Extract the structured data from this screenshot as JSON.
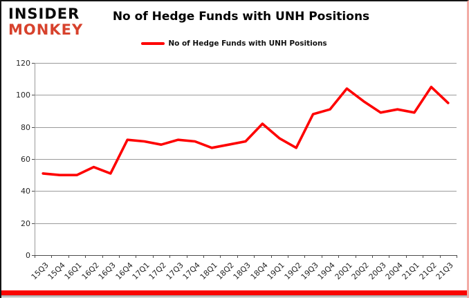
{
  "logo": {
    "line1": "INSIDER",
    "line2": "MONKEY"
  },
  "header": {
    "title": "No of Hedge Funds with UNH Positions"
  },
  "legend": {
    "label": "No of Hedge Funds with UNH Positions"
  },
  "colors": {
    "line": "#fe0000",
    "logo_red": "#d7422d",
    "bottom_band_red": "#f90500",
    "gridline": "#9a9a9a",
    "axis": "#4c4c4c",
    "tick_text": "#262626"
  },
  "chart_data": {
    "type": "line",
    "title": "No of Hedge Funds with UNH Positions",
    "series_name": "No of Hedge Funds with UNH Positions",
    "categories": [
      "15Q3",
      "15Q4",
      "16Q1",
      "16Q2",
      "16Q3",
      "16Q4",
      "17Q1",
      "17Q2",
      "17Q3",
      "17Q4",
      "18Q1",
      "18Q2",
      "18Q3",
      "18Q4",
      "19Q1",
      "19Q2",
      "19Q3",
      "19Q4",
      "20Q1",
      "20Q2",
      "20Q3",
      "20Q4",
      "21Q1",
      "21Q2",
      "21Q3"
    ],
    "values": [
      51,
      50,
      50,
      55,
      51,
      72,
      71,
      69,
      72,
      71,
      67,
      69,
      71,
      82,
      73,
      67,
      88,
      91,
      104,
      96,
      89,
      91,
      89,
      105,
      95
    ],
    "ylim": [
      0,
      120
    ],
    "yticks": [
      0,
      20,
      40,
      60,
      80,
      100,
      120
    ],
    "grid": true,
    "legend_position": "top-center",
    "line_color": "#fe0000",
    "xlabel": "",
    "ylabel": ""
  }
}
